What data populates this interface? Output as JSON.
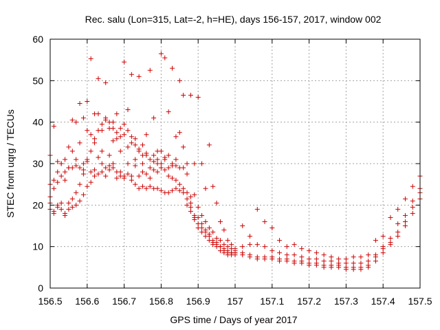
{
  "chart_data": {
    "type": "scatter",
    "title": "Rec. salu (Lon=315, Lat=-2, h=HE), days 156-157, 2017, window 002",
    "xlabel": "GPS time / Days of year 2017",
    "ylabel": "STEC from uqrg / TECUs",
    "xlim": [
      156.5,
      157.5
    ],
    "ylim": [
      0,
      60
    ],
    "xticks": [
      "156.5",
      "156.6",
      "156.7",
      "156.8",
      "156.9",
      "157",
      "157.1",
      "157.2",
      "157.3",
      "157.4",
      "157.5"
    ],
    "yticks": [
      "0",
      "10",
      "20",
      "30",
      "40",
      "50",
      "60"
    ],
    "grid": true,
    "marker": "+",
    "marker_color": "#cc0000",
    "series": [
      {
        "x": [
          156.5,
          156.51,
          156.52,
          156.53,
          156.54,
          156.55,
          156.56,
          156.57,
          156.58,
          156.59,
          156.6,
          156.61,
          156.62,
          156.63,
          156.64,
          156.65,
          156.66,
          156.67,
          156.68,
          156.69,
          156.7,
          156.71,
          156.72,
          156.73,
          156.74,
          156.75,
          156.76,
          156.77,
          156.78,
          156.79,
          156.8,
          156.81,
          156.82,
          156.83,
          156.84,
          156.85,
          156.86,
          156.87,
          156.88,
          156.89,
          156.9,
          156.91,
          156.92,
          156.93,
          156.94,
          156.95,
          156.96,
          156.97,
          156.98,
          156.99,
          157.0,
          157.02,
          157.04,
          157.06,
          157.08,
          157.1,
          157.12,
          157.14,
          157.16,
          157.18,
          157.2,
          157.22,
          157.24,
          157.26,
          157.28,
          157.3,
          157.32,
          157.34,
          157.36,
          157.38,
          157.4,
          157.42,
          157.44,
          157.46,
          157.48,
          157.5
        ],
        "y": [
          32.0,
          39.0,
          28.0,
          30.0,
          26.0,
          29.0,
          40.5,
          31.0,
          44.5,
          30.0,
          45.0,
          55.3,
          42.0,
          50.5,
          38.0,
          49.5,
          40.0,
          38.5,
          42.0,
          36.5,
          54.5,
          43.0,
          51.5,
          36.0,
          51.0,
          34.5,
          37.0,
          52.5,
          41.0,
          33.0,
          56.5,
          55.5,
          42.5,
          53.0,
          36.5,
          50.0,
          46.5,
          30.0,
          46.5,
          30.0,
          46.0,
          30.0,
          24.0,
          34.5,
          24.5,
          20.5,
          16.0,
          14.0,
          11.5,
          10.5,
          9.0,
          15.0,
          12.5,
          19.0,
          16.0,
          14.5,
          11.5,
          10.0,
          10.5,
          9.5,
          9.0,
          8.5,
          8.0,
          7.5,
          7.0,
          7.0,
          7.5,
          7.5,
          8.0,
          11.5,
          12.5,
          17.0,
          19.0,
          21.5,
          24.5,
          27.0
        ]
      },
      {
        "x": [
          156.5,
          156.51,
          156.52,
          156.53,
          156.54,
          156.55,
          156.56,
          156.57,
          156.58,
          156.59,
          156.6,
          156.61,
          156.62,
          156.63,
          156.64,
          156.65,
          156.66,
          156.67,
          156.68,
          156.69,
          156.7,
          156.71,
          156.72,
          156.73,
          156.74,
          156.75,
          156.76,
          156.77,
          156.78,
          156.79,
          156.8,
          156.81,
          156.82,
          156.83,
          156.84,
          156.85,
          156.86,
          156.87,
          156.88,
          156.89,
          156.9,
          156.91,
          156.92,
          156.93,
          156.94,
          156.95,
          156.96,
          156.97,
          156.98,
          156.99,
          157.0,
          157.02,
          157.04,
          157.06,
          157.08,
          157.1,
          157.12,
          157.14,
          157.16,
          157.18,
          157.2,
          157.22,
          157.24,
          157.26,
          157.28,
          157.3,
          157.32,
          157.34,
          157.36,
          157.38,
          157.4,
          157.42,
          157.44,
          157.46,
          157.48,
          157.5
        ],
        "y": [
          25.0,
          26.0,
          30.5,
          30.0,
          31.0,
          34.0,
          33.0,
          40.0,
          35.0,
          41.0,
          38.0,
          37.0,
          35.0,
          42.0,
          33.0,
          41.0,
          32.0,
          35.5,
          36.0,
          33.0,
          37.0,
          34.0,
          35.0,
          31.0,
          33.0,
          30.0,
          32.5,
          29.0,
          32.0,
          31.0,
          33.0,
          31.5,
          32.0,
          29.5,
          31.0,
          37.5,
          34.0,
          27.5,
          22.0,
          22.5,
          19.5,
          17.5,
          16.0,
          14.5,
          13.5,
          12.0,
          11.5,
          10.5,
          10.0,
          9.5,
          9.5,
          10.0,
          10.5,
          10.5,
          10.0,
          9.0,
          8.5,
          8.0,
          8.0,
          7.5,
          7.0,
          7.0,
          6.5,
          6.5,
          6.0,
          6.0,
          6.0,
          6.0,
          6.5,
          8.0,
          10.0,
          12.0,
          15.5,
          17.5,
          21.0,
          24.0
        ]
      },
      {
        "x": [
          156.5,
          156.51,
          156.52,
          156.53,
          156.54,
          156.55,
          156.56,
          156.57,
          156.58,
          156.59,
          156.6,
          156.61,
          156.62,
          156.63,
          156.64,
          156.65,
          156.66,
          156.67,
          156.68,
          156.69,
          156.7,
          156.71,
          156.72,
          156.73,
          156.74,
          156.75,
          156.76,
          156.77,
          156.78,
          156.79,
          156.8,
          156.81,
          156.82,
          156.83,
          156.84,
          156.85,
          156.86,
          156.87,
          156.88,
          156.89,
          156.9,
          156.91,
          156.92,
          156.93,
          156.94,
          156.95,
          156.96,
          156.97,
          156.98,
          156.99,
          157.0,
          157.02,
          157.04,
          157.06,
          157.08,
          157.1,
          157.12,
          157.14,
          157.16,
          157.18,
          157.2,
          157.22,
          157.24,
          157.26,
          157.28,
          157.3,
          157.32,
          157.34,
          157.36,
          157.38,
          157.4,
          157.42,
          157.44,
          157.46,
          157.48,
          157.5
        ],
        "y": [
          22.0,
          24.0,
          25.5,
          27.0,
          28.0,
          29.0,
          29.0,
          29.5,
          29.0,
          28.5,
          31.0,
          28.0,
          28.5,
          31.5,
          30.0,
          29.0,
          28.5,
          29.0,
          28.0,
          28.0,
          27.0,
          30.0,
          27.0,
          29.5,
          27.0,
          28.0,
          27.5,
          26.5,
          28.5,
          28.0,
          29.0,
          31.0,
          29.0,
          30.0,
          29.5,
          29.0,
          29.0,
          23.0,
          20.5,
          17.0,
          17.0,
          15.5,
          14.0,
          13.0,
          11.5,
          11.0,
          10.0,
          9.5,
          9.0,
          8.5,
          8.5,
          8.5,
          8.0,
          7.5,
          7.5,
          7.5,
          7.0,
          7.0,
          6.5,
          6.5,
          6.0,
          6.0,
          5.5,
          5.5,
          5.5,
          5.0,
          5.0,
          5.0,
          5.5,
          7.5,
          9.5,
          11.0,
          13.5,
          16.0,
          19.5,
          23.0
        ]
      },
      {
        "x": [
          156.5,
          156.51,
          156.52,
          156.53,
          156.54,
          156.55,
          156.56,
          156.57,
          156.58,
          156.59,
          156.6,
          156.61,
          156.62,
          156.63,
          156.64,
          156.65,
          156.66,
          156.67,
          156.68,
          156.69,
          156.7,
          156.71,
          156.72,
          156.73,
          156.74,
          156.75,
          156.76,
          156.77,
          156.78,
          156.79,
          156.8,
          156.81,
          156.82,
          156.83,
          156.84,
          156.85,
          156.86,
          156.87,
          156.88,
          156.89,
          156.9,
          156.91,
          156.92,
          156.93,
          156.94,
          156.95,
          156.96,
          156.97,
          156.98,
          156.99,
          157.0,
          157.02,
          157.04,
          157.06,
          157.08,
          157.1,
          157.12,
          157.14,
          157.16,
          157.18,
          157.2,
          157.22,
          157.24,
          157.26,
          157.28,
          157.3,
          157.32,
          157.34,
          157.36,
          157.38,
          157.4,
          157.42,
          157.44,
          157.46,
          157.48,
          157.5
        ],
        "y": [
          20.5,
          18.5,
          20.0,
          20.5,
          18.0,
          20.5,
          19.5,
          20.0,
          21.0,
          22.5,
          24.5,
          25.5,
          27.0,
          27.5,
          28.0,
          27.0,
          29.5,
          30.0,
          26.5,
          27.0,
          26.5,
          27.5,
          26.0,
          25.0,
          24.0,
          24.5,
          24.0,
          24.5,
          24.0,
          24.0,
          23.5,
          23.0,
          23.0,
          23.5,
          24.0,
          23.5,
          23.0,
          20.0,
          18.5,
          16.5,
          14.5,
          13.5,
          12.5,
          11.5,
          10.5,
          10.0,
          9.0,
          8.5,
          8.0,
          8.0,
          8.0,
          8.0,
          7.5,
          7.0,
          7.0,
          7.0,
          6.5,
          6.5,
          6.0,
          6.0,
          5.5,
          5.5,
          5.0,
          5.0,
          5.0,
          4.5,
          4.5,
          4.5,
          5.0,
          6.5,
          8.5,
          10.5,
          12.5,
          15.0,
          18.0,
          21.5
        ]
      },
      {
        "x": [
          156.5,
          156.51,
          156.52,
          156.53,
          156.54,
          156.55,
          156.56,
          156.57,
          156.58,
          156.59,
          156.6,
          156.61,
          156.62,
          156.63,
          156.64,
          156.65,
          156.66,
          156.67,
          156.68,
          156.69,
          156.7,
          156.71,
          156.72,
          156.73,
          156.74,
          156.75,
          156.76,
          156.77,
          156.78,
          156.79,
          156.8,
          156.81,
          156.82,
          156.83,
          156.84,
          156.85,
          156.86,
          156.87,
          156.88,
          156.89,
          156.9,
          156.91,
          156.92,
          156.93,
          156.94,
          156.95,
          156.96,
          156.97,
          156.98,
          156.99,
          157.0
        ],
        "y": [
          19.0,
          18.0,
          19.5,
          19.0,
          17.5,
          19.0,
          21.5,
          23.0,
          25.0,
          27.5,
          30.5,
          33.0,
          36.0,
          38.0,
          39.5,
          40.5,
          38.5,
          40.0,
          37.5,
          38.5,
          39.5,
          38.0,
          36.5,
          34.5,
          33.5,
          32.0,
          32.0,
          31.0,
          30.5,
          30.0,
          30.0,
          28.5,
          27.0,
          26.5,
          26.0,
          25.0,
          24.0,
          21.5,
          19.5,
          17.5,
          15.5,
          14.5,
          13.5,
          12.5,
          11.0,
          10.5,
          10.0,
          9.0,
          8.5,
          8.5,
          8.5
        ]
      }
    ]
  }
}
